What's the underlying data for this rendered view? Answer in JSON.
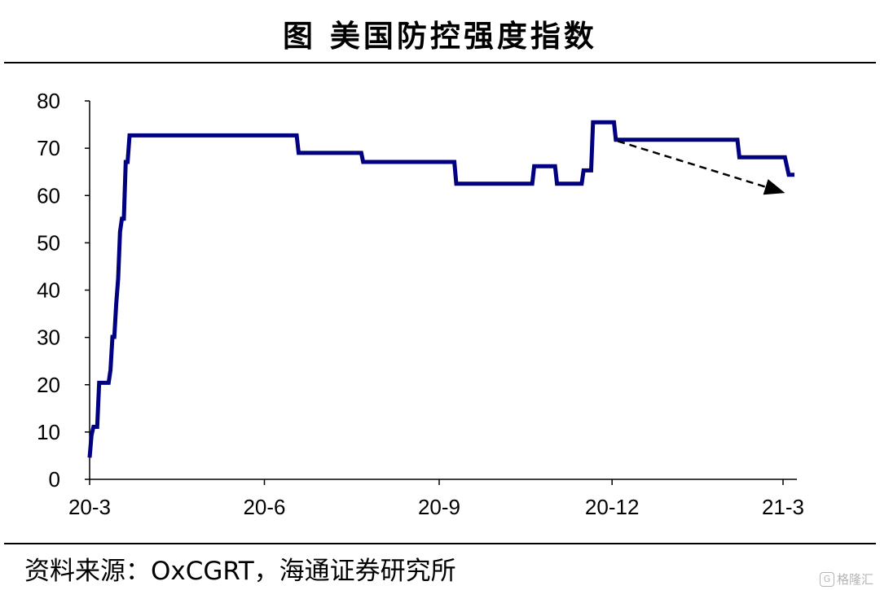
{
  "title": "图  美国防控强度指数",
  "source": "资料来源：OxCGRT，海通证券研究所",
  "watermark": {
    "text": "格隆汇",
    "logo": "G"
  },
  "colors": {
    "series": "#000080",
    "arrow": "#000000",
    "axis": "#000000"
  },
  "chart_data": {
    "type": "line",
    "title": "",
    "xlabel": "",
    "ylabel": "",
    "ylim": [
      0,
      80
    ],
    "yticks": [
      0,
      10,
      20,
      30,
      40,
      50,
      60,
      70,
      80
    ],
    "xlim": [
      "2020-03-01",
      "2021-03-08"
    ],
    "xticks": [
      {
        "date": "2020-03-01",
        "label": "20-3"
      },
      {
        "date": "2020-06-01",
        "label": "20-6"
      },
      {
        "date": "2020-09-01",
        "label": "20-9"
      },
      {
        "date": "2020-12-01",
        "label": "20-12"
      },
      {
        "date": "2021-03-01",
        "label": "21-3"
      }
    ],
    "grid": false,
    "legend": "none",
    "series": [
      {
        "points": [
          [
            "2020-03-01",
            4.6
          ],
          [
            "2020-03-02",
            9.3
          ],
          [
            "2020-03-03",
            11.1
          ],
          [
            "2020-03-05",
            11.1
          ],
          [
            "2020-03-06",
            20.4
          ],
          [
            "2020-03-11",
            20.4
          ],
          [
            "2020-03-12",
            23.1
          ],
          [
            "2020-03-13",
            30.1
          ],
          [
            "2020-03-14",
            30.1
          ],
          [
            "2020-03-15",
            37.0
          ],
          [
            "2020-03-16",
            42.4
          ],
          [
            "2020-03-17",
            52.3
          ],
          [
            "2020-03-18",
            55.1
          ],
          [
            "2020-03-19",
            55.1
          ],
          [
            "2020-03-20",
            67.1
          ],
          [
            "2020-03-21",
            67.1
          ],
          [
            "2020-03-22",
            72.7
          ],
          [
            "2020-06-18",
            72.7
          ],
          [
            "2020-06-19",
            69.0
          ],
          [
            "2020-07-22",
            69.0
          ],
          [
            "2020-07-23",
            67.1
          ],
          [
            "2020-09-09",
            67.1
          ],
          [
            "2020-09-10",
            62.5
          ],
          [
            "2020-10-20",
            62.5
          ],
          [
            "2020-10-21",
            66.2
          ],
          [
            "2020-11-01",
            66.2
          ],
          [
            "2020-11-02",
            62.5
          ],
          [
            "2020-11-15",
            62.5
          ],
          [
            "2020-11-16",
            65.3
          ],
          [
            "2020-11-20",
            65.3
          ],
          [
            "2020-11-21",
            75.5
          ],
          [
            "2020-12-02",
            75.5
          ],
          [
            "2020-12-03",
            71.8
          ],
          [
            "2021-02-05",
            71.8
          ],
          [
            "2021-02-06",
            68.1
          ],
          [
            "2021-03-02",
            68.1
          ],
          [
            "2021-03-04",
            64.4
          ],
          [
            "2021-03-07",
            64.4
          ]
        ]
      }
    ],
    "annotations": [
      {
        "type": "dashed-arrow",
        "from": [
          "2020-12-04",
          71.5
        ],
        "to": [
          "2021-02-28",
          60.8
        ]
      }
    ]
  }
}
